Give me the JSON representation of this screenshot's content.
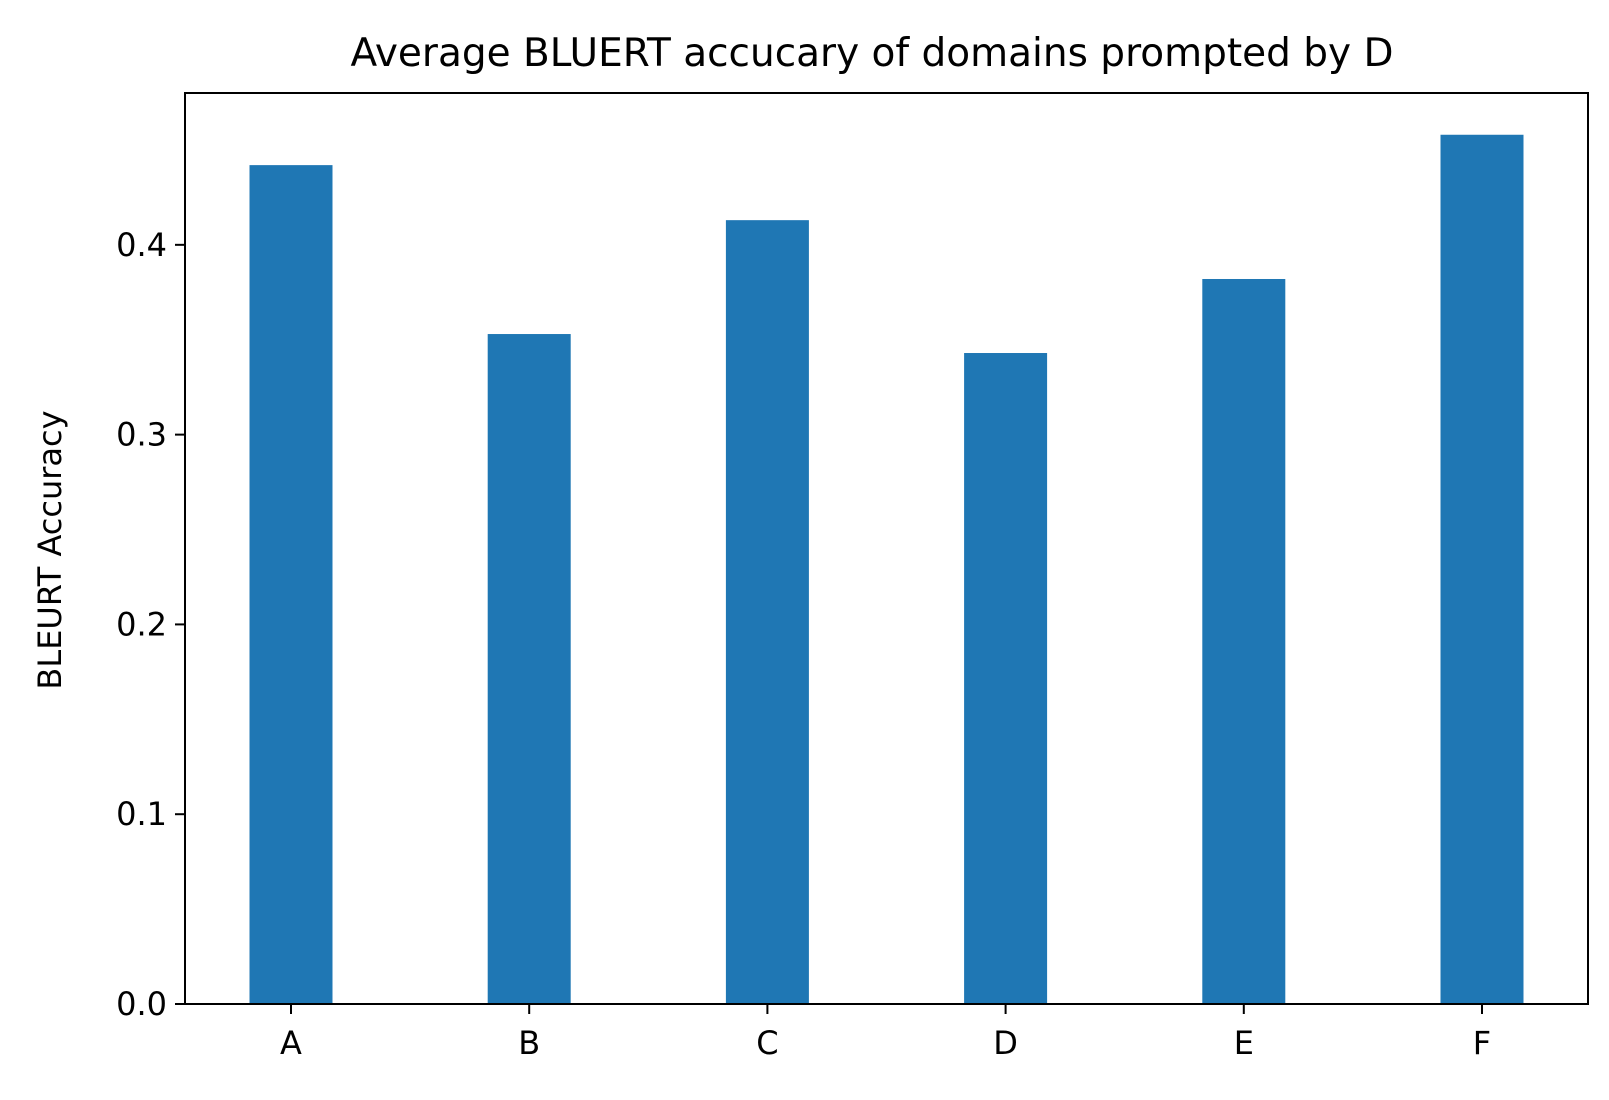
{
  "chart_data": {
    "type": "bar",
    "title": "Average BLUERT accucary of domains prompted by D",
    "xlabel": "",
    "ylabel": "BLEURT Accuracy",
    "categories": [
      "A",
      "B",
      "C",
      "D",
      "E",
      "F"
    ],
    "values": [
      0.442,
      0.353,
      0.413,
      0.343,
      0.382,
      0.458
    ],
    "ylim": [
      0,
      0.48
    ],
    "yticks": [
      0.0,
      0.1,
      0.2,
      0.3,
      0.4
    ],
    "ytick_labels": [
      "0.0",
      "0.1",
      "0.2",
      "0.3",
      "0.4"
    ],
    "bar_color": "#1f77b4",
    "grid": false,
    "legend": "none"
  }
}
